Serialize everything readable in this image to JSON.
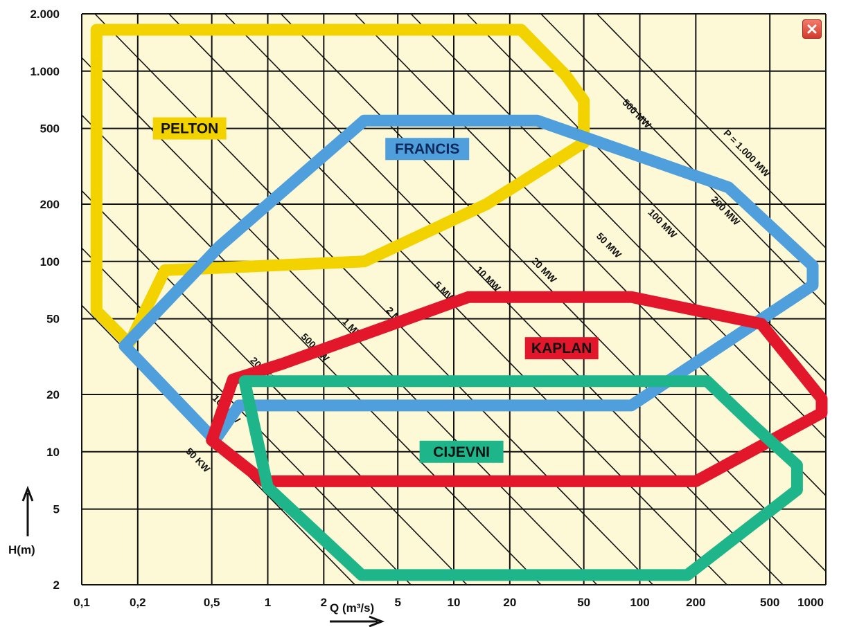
{
  "chart_data": {
    "type": "area",
    "x_axis": {
      "label": "Q (m³/s)",
      "scale": "log",
      "range": [
        0.1,
        1000
      ],
      "ticks": [
        0.1,
        0.2,
        0.5,
        1,
        2,
        5,
        10,
        20,
        50,
        100,
        200,
        500,
        1000
      ],
      "tick_labels": [
        "0,1",
        "0,2",
        "0,5",
        "1",
        "2",
        "5",
        "10",
        "20",
        "50",
        "100",
        "200",
        "500",
        "1000"
      ]
    },
    "y_axis": {
      "label": "H(m)",
      "scale": "log",
      "range": [
        2,
        2000
      ],
      "ticks": [
        2,
        5,
        10,
        20,
        50,
        100,
        200,
        500,
        1000,
        2000
      ],
      "tick_labels": [
        "2",
        "5",
        "10",
        "20",
        "50",
        "100",
        "200",
        "500",
        "1.000",
        "2.000"
      ]
    },
    "grid": true,
    "power_lines": [
      {
        "label": "50 KW",
        "kw": 50,
        "label_at": [
          0.36,
          10
        ]
      },
      {
        "label": "100 KW",
        "kw": 100,
        "label_at": [
          0.5,
          19
        ]
      },
      {
        "label": "200 KW",
        "kw": 200,
        "label_at": [
          0.8,
          30
        ]
      },
      {
        "label": "500 KW",
        "kw": 500,
        "label_at": [
          1.5,
          40
        ]
      },
      {
        "label": "1 MW",
        "kw": 1000,
        "label_at": [
          2.5,
          48
        ]
      },
      {
        "label": "2 MW",
        "kw": 2000,
        "label_at": [
          4.3,
          55
        ]
      },
      {
        "label": "5 MW",
        "kw": 5000,
        "label_at": [
          7.8,
          75
        ]
      },
      {
        "label": "10 MW",
        "kw": 10000,
        "label_at": [
          13,
          90
        ]
      },
      {
        "label": "20 MW",
        "kw": 20000,
        "label_at": [
          26,
          100
        ]
      },
      {
        "label": "50 MW",
        "kw": 50000,
        "label_at": [
          58,
          135
        ]
      },
      {
        "label": "100 MW",
        "kw": 100000,
        "label_at": [
          110,
          180
        ]
      },
      {
        "label": "200 MW",
        "kw": 200000,
        "label_at": [
          240,
          210
        ]
      },
      {
        "label": "500 MW",
        "kw": 500000,
        "label_at": [
          80,
          680
        ]
      },
      {
        "label": "P = 1.000 MW",
        "kw": 1000000,
        "label_at": [
          280,
          470
        ]
      }
    ],
    "power_line_coefficient": 8.5,
    "series": [
      {
        "name": "PELTON",
        "color": "#f2d300",
        "label_at": [
          0.38,
          500
        ],
        "polygon": [
          [
            0.12,
            1650
          ],
          [
            23,
            1650
          ],
          [
            40,
            950
          ],
          [
            50,
            700
          ],
          [
            50,
            420
          ],
          [
            15,
            200
          ],
          [
            3.3,
            100
          ],
          [
            0.28,
            90
          ],
          [
            0.18,
            37
          ],
          [
            0.12,
            55
          ]
        ]
      },
      {
        "name": "FRANCIS",
        "color": "#4f9fdc",
        "label_at": [
          7.2,
          390
        ],
        "polygon": [
          [
            3.3,
            550
          ],
          [
            28,
            550
          ],
          [
            300,
            245
          ],
          [
            850,
            95
          ],
          [
            850,
            75
          ],
          [
            90,
            17.5
          ],
          [
            0.7,
            17.5
          ],
          [
            0.52,
            11.5
          ],
          [
            0.17,
            36
          ],
          [
            0.55,
            120
          ]
        ]
      },
      {
        "name": "KAPLAN",
        "color": "#e2172b",
        "label_at": [
          38,
          35
        ],
        "polygon": [
          [
            12,
            65
          ],
          [
            90,
            65
          ],
          [
            450,
            47
          ],
          [
            950,
            19
          ],
          [
            950,
            16
          ],
          [
            200,
            7
          ],
          [
            0.95,
            7
          ],
          [
            0.5,
            11.5
          ],
          [
            0.65,
            24
          ],
          [
            1.2,
            29
          ]
        ]
      },
      {
        "name": "CIJEVNI",
        "color": "#1fb58b",
        "label_at": [
          11,
          10
        ],
        "polygon": [
          [
            0.75,
            23.5
          ],
          [
            230,
            23.5
          ],
          [
            400,
            14
          ],
          [
            700,
            8.5
          ],
          [
            700,
            6.3
          ],
          [
            180,
            2.25
          ],
          [
            3.2,
            2.25
          ],
          [
            1,
            6.5
          ]
        ]
      }
    ]
  },
  "window": {
    "close_icon": "close-icon"
  }
}
